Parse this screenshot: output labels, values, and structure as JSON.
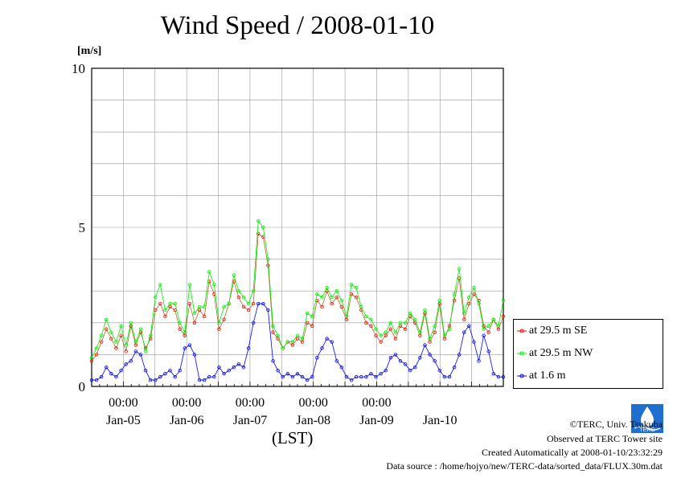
{
  "page": {
    "title": "Wind Speed / 2008-01-10",
    "unit_label": "[m/s]",
    "x_axis_title": "(LST)",
    "credits": {
      "copyright": "©TERC, Univ. Tsukuba",
      "observed": "Observed at TERC Tower site",
      "created": "Created Automatically at 2008-01-10/23:32:29",
      "source": "Data source : /home/hojyo/new/TERC-data/sorted_data/FLUX.30m.dat"
    },
    "logo_text": "TERC"
  },
  "legend": {
    "items": [
      {
        "label": "at 29.5 m SE",
        "color": "#ff0000"
      },
      {
        "label": "at 29.5 m NW",
        "color": "#00ee00"
      },
      {
        "label": "at 1.6 m",
        "color": "#0000ff"
      }
    ]
  },
  "chart_data": {
    "type": "line",
    "title": "Wind Speed / 2008-01-10",
    "ylabel": "[m/s]",
    "xlabel": "(LST)",
    "ylim": [
      0,
      10
    ],
    "yticks": [
      0,
      5,
      10
    ],
    "xlim_days": [
      "2008-01-04 12:00",
      "2008-01-10 24:00"
    ],
    "x_tick_labels": [
      "00:00",
      "00:00",
      "00:00",
      "00:00",
      "00:00"
    ],
    "x_day_labels": [
      "Jan-05",
      "Jan-06",
      "Jan-07",
      "Jan-08",
      "Jan-09",
      "Jan-10"
    ],
    "grid": true,
    "legend_position": "right",
    "sample_interval_hours": 3,
    "series": [
      {
        "name": "at 29.5 m SE",
        "color": "#ff0000",
        "values": [
          0.8,
          1.0,
          1.4,
          1.8,
          1.5,
          1.2,
          1.6,
          1.1,
          1.9,
          1.3,
          1.7,
          1.2,
          1.5,
          2.4,
          2.6,
          2.2,
          2.5,
          2.4,
          1.8,
          1.6,
          2.6,
          2.0,
          2.4,
          2.2,
          3.3,
          2.9,
          1.8,
          2.1,
          2.6,
          3.3,
          2.8,
          2.5,
          2.4,
          2.6,
          4.8,
          4.7,
          3.8,
          1.7,
          1.5,
          1.2,
          1.4,
          1.3,
          1.5,
          1.4,
          2.0,
          1.9,
          2.7,
          2.5,
          3.0,
          2.6,
          2.8,
          2.5,
          2.1,
          2.9,
          2.8,
          2.4,
          2.0,
          1.9,
          1.6,
          1.4,
          1.6,
          1.8,
          1.5,
          1.9,
          1.8,
          2.2,
          2.0,
          1.6,
          2.3,
          1.4,
          1.7,
          2.6,
          1.5,
          1.9,
          2.7,
          3.4,
          2.1,
          2.6,
          2.9,
          2.7,
          1.9,
          1.7,
          2.1,
          1.8,
          2.2
        ]
      },
      {
        "name": "at 29.5 m NW",
        "color": "#00ee00",
        "values": [
          0.9,
          1.2,
          1.6,
          2.1,
          1.7,
          1.4,
          1.9,
          1.3,
          2.0,
          1.4,
          1.8,
          1.1,
          1.6,
          2.8,
          3.2,
          2.4,
          2.6,
          2.6,
          2.0,
          1.7,
          3.2,
          2.3,
          2.5,
          2.5,
          3.6,
          3.2,
          2.0,
          2.5,
          2.6,
          3.5,
          3.0,
          2.8,
          2.6,
          3.0,
          5.2,
          5.0,
          4.0,
          1.9,
          1.6,
          1.2,
          1.4,
          1.4,
          1.6,
          1.5,
          2.3,
          2.2,
          2.9,
          2.8,
          3.1,
          2.8,
          3.0,
          2.7,
          2.2,
          3.2,
          3.1,
          2.5,
          2.2,
          2.1,
          1.8,
          1.6,
          1.7,
          2.0,
          1.7,
          2.0,
          2.0,
          2.3,
          2.1,
          1.7,
          2.4,
          1.5,
          1.9,
          2.7,
          1.6,
          1.8,
          2.9,
          3.7,
          2.3,
          2.8,
          3.1,
          2.6,
          1.8,
          1.9,
          2.1,
          1.9,
          2.7
        ]
      },
      {
        "name": "at 1.6 m",
        "color": "#0000ff",
        "values": [
          0.2,
          0.2,
          0.3,
          0.6,
          0.4,
          0.3,
          0.5,
          0.7,
          0.8,
          1.1,
          1.0,
          0.5,
          0.2,
          0.2,
          0.3,
          0.4,
          0.5,
          0.3,
          0.5,
          1.2,
          1.3,
          1.0,
          0.2,
          0.2,
          0.3,
          0.3,
          0.6,
          0.4,
          0.5,
          0.6,
          0.7,
          0.6,
          1.2,
          2.0,
          2.6,
          2.6,
          2.4,
          0.8,
          0.5,
          0.3,
          0.4,
          0.3,
          0.4,
          0.3,
          0.2,
          0.3,
          0.9,
          1.2,
          1.5,
          1.4,
          0.8,
          0.6,
          0.3,
          0.2,
          0.3,
          0.3,
          0.3,
          0.4,
          0.3,
          0.4,
          0.5,
          0.9,
          1.0,
          0.8,
          0.7,
          0.5,
          0.6,
          0.9,
          1.3,
          1.0,
          0.8,
          0.5,
          0.3,
          0.3,
          0.6,
          1.0,
          1.7,
          1.9,
          1.4,
          0.8,
          1.6,
          1.1,
          0.4,
          0.3,
          0.3
        ]
      }
    ]
  }
}
